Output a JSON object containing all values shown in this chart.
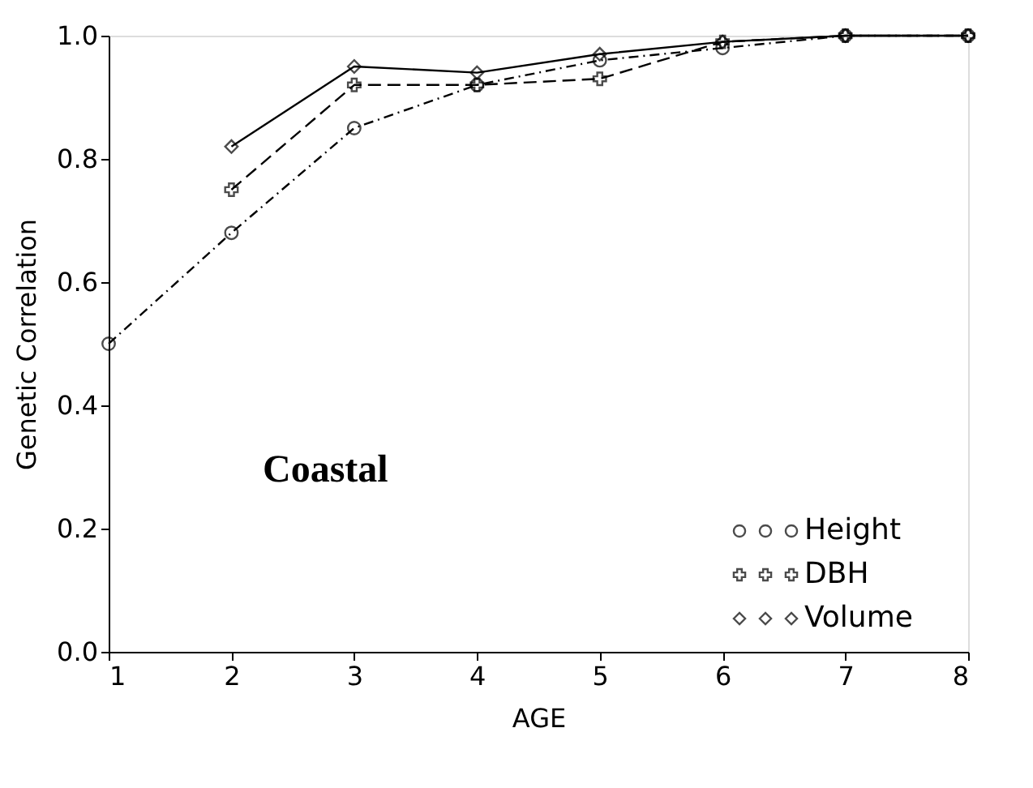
{
  "chart_data": {
    "type": "line",
    "xlabel": "AGE",
    "ylabel": "Genetic Correlation",
    "annotations": [
      "Coastal"
    ],
    "xlim": [
      1,
      8
    ],
    "xticks": [
      1,
      2,
      3,
      4,
      5,
      6,
      7,
      8
    ],
    "ylim": [
      0,
      1
    ],
    "yticks": [
      {
        "value": 0,
        "label": "0.0"
      },
      {
        "value": 0.2,
        "label": "0.2"
      },
      {
        "value": 0.4,
        "label": "0.4"
      },
      {
        "value": 0.6,
        "label": "0.6"
      },
      {
        "value": 0.8,
        "label": "0.8"
      },
      {
        "value": 1,
        "label": "1.0"
      }
    ],
    "grid": false,
    "legend": "bottom right",
    "series": [
      {
        "name": "Height",
        "color": "#000000",
        "marker": "circle",
        "line_style": "dashdot",
        "x": [
          1,
          2,
          3,
          4,
          5,
          6,
          7,
          8
        ],
        "values": [
          0.5,
          0.68,
          0.85,
          0.92,
          0.96,
          0.98,
          1.0,
          1.0
        ]
      },
      {
        "name": "DBH",
        "color": "#000000",
        "marker": "cross",
        "line_style": "dashed",
        "x": [
          2,
          3,
          4,
          5,
          6,
          7,
          8
        ],
        "values": [
          0.75,
          0.92,
          0.92,
          0.93,
          0.99,
          1.0,
          1.0
        ]
      },
      {
        "name": "Volume",
        "color": "#000000",
        "marker": "diamond",
        "line_style": "solid",
        "x": [
          2,
          3,
          4,
          5,
          6,
          7,
          8
        ],
        "values": [
          0.82,
          0.95,
          0.94,
          0.97,
          0.99,
          1.0,
          1.0
        ]
      }
    ]
  }
}
